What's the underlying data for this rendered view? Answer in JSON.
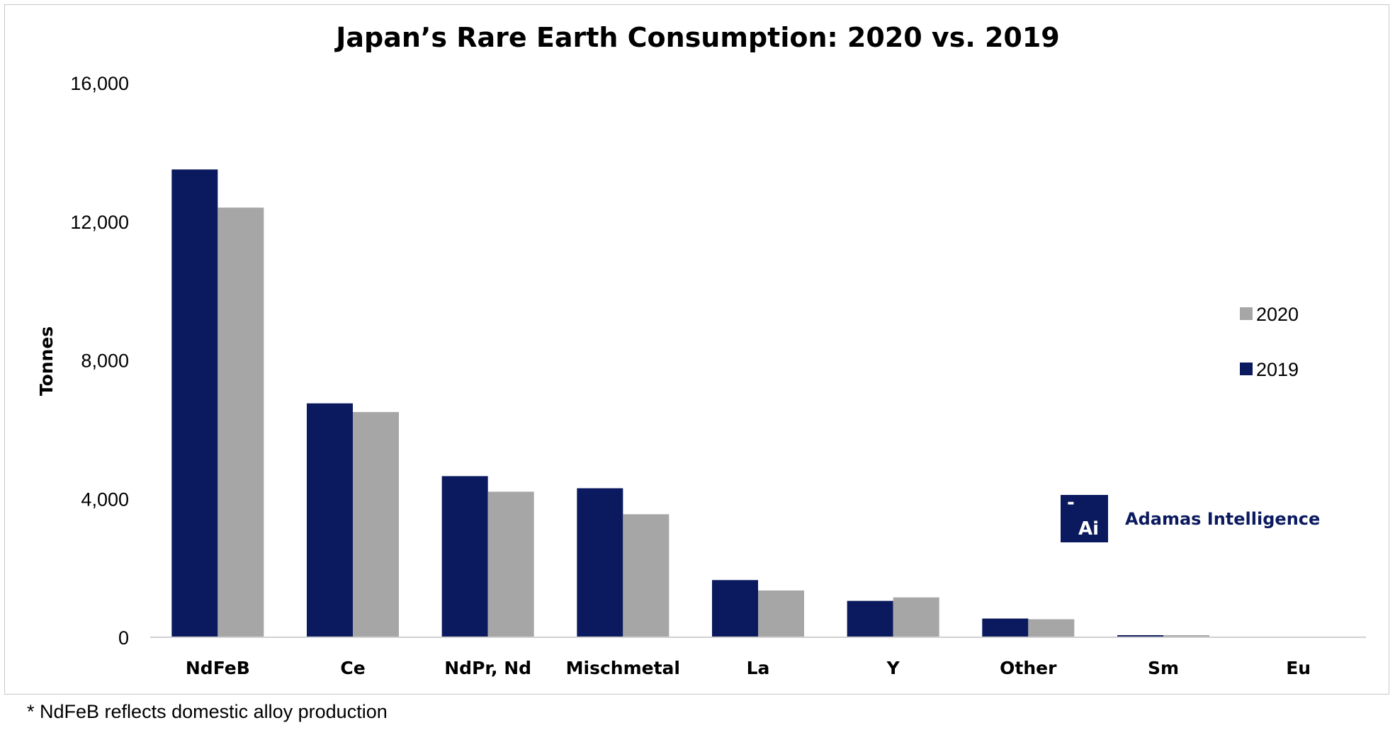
{
  "colors": {
    "series_2019": "#0b1a5e",
    "series_2020": "#a6a6a6",
    "logo_blue": "#0b1a5e",
    "axis": "#d0d0d0"
  },
  "chart_data": {
    "type": "bar",
    "title": "Japan’s Rare Earth Consumption: 2020 vs. 2019",
    "xlabel": "",
    "ylabel": "Tonnes",
    "ylim": [
      0,
      16000
    ],
    "yticks": [
      "0",
      "4,000",
      "8,000",
      "12,000",
      "16,000"
    ],
    "ytick_values": [
      0,
      4000,
      8000,
      12000,
      16000
    ],
    "grid": false,
    "legend_position": "right",
    "categories": [
      "NdFeB",
      "Ce",
      "NdPr, Nd",
      "Mischmetal",
      "La",
      "Y",
      "Other",
      "Sm",
      "Eu"
    ],
    "series": [
      {
        "name": "2019",
        "values": [
          13500,
          6750,
          4650,
          4300,
          1650,
          1050,
          540,
          60,
          5
        ]
      },
      {
        "name": "2020",
        "values": [
          12400,
          6500,
          4200,
          3550,
          1350,
          1150,
          520,
          60,
          5
        ]
      }
    ],
    "legend_order": [
      "2020",
      "2019"
    ]
  },
  "footnote": "* NdFeB reflects domestic alloy production",
  "logo": {
    "mark_dash": "-",
    "mark_text": "Ai",
    "wordmark": "Adamas Intelligence"
  }
}
